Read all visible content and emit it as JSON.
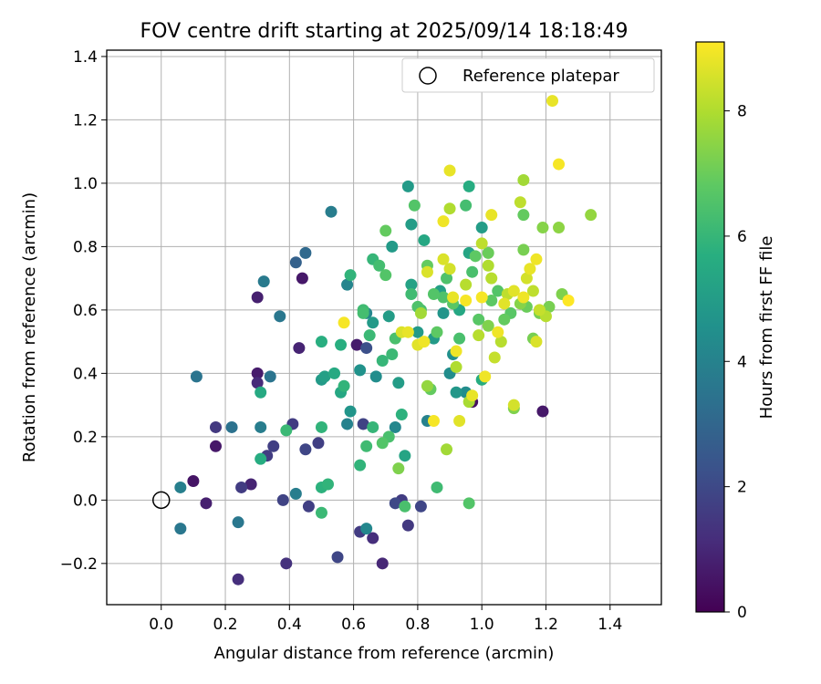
{
  "chart_data": {
    "type": "scatter",
    "title": "FOV centre drift starting at 2025/09/14 18:18:49",
    "xlabel": "Angular distance from reference (arcmin)",
    "ylabel": "Rotation from reference (arcmin)",
    "xlim": [
      -0.17,
      1.56
    ],
    "ylim": [
      -0.33,
      1.42
    ],
    "xticks": [
      "0.0",
      "0.2",
      "0.4",
      "0.6",
      "0.8",
      "1.0",
      "1.2",
      "1.4"
    ],
    "yticks": [
      "−0.2",
      "0.0",
      "0.2",
      "0.4",
      "0.6",
      "0.8",
      "1.0",
      "1.2",
      "1.4"
    ],
    "grid": true,
    "legend": {
      "label": "Reference platepar",
      "position": "top-right"
    },
    "reference_point": {
      "x": 0.0,
      "y": 0.0
    },
    "colorbar": {
      "label": "Hours from first FF file",
      "colormap": "viridis",
      "range": [
        0,
        9.1
      ],
      "ticks": [
        "0",
        "2",
        "4",
        "6",
        "8"
      ]
    },
    "points": [
      {
        "x": 0.1,
        "y": 0.06,
        "c": 0.5
      },
      {
        "x": 0.14,
        "y": -0.01,
        "c": 0.8
      },
      {
        "x": 0.17,
        "y": 0.17,
        "c": 0.6
      },
      {
        "x": 0.17,
        "y": 0.23,
        "c": 1.5
      },
      {
        "x": 0.25,
        "y": 0.04,
        "c": 1.6
      },
      {
        "x": 0.28,
        "y": 0.05,
        "c": 0.9
      },
      {
        "x": 0.24,
        "y": -0.25,
        "c": 1.2
      },
      {
        "x": 0.3,
        "y": 0.4,
        "c": 0.7
      },
      {
        "x": 0.3,
        "y": 0.64,
        "c": 0.8
      },
      {
        "x": 0.3,
        "y": 0.37,
        "c": 1.1
      },
      {
        "x": 0.33,
        "y": 0.14,
        "c": 1.6
      },
      {
        "x": 0.35,
        "y": 0.17,
        "c": 1.7
      },
      {
        "x": 0.38,
        "y": 0.0,
        "c": 1.8
      },
      {
        "x": 0.39,
        "y": -0.2,
        "c": 1.3
      },
      {
        "x": 0.41,
        "y": 0.24,
        "c": 1.6
      },
      {
        "x": 0.43,
        "y": 0.48,
        "c": 0.9
      },
      {
        "x": 0.44,
        "y": 0.7,
        "c": 0.6
      },
      {
        "x": 0.45,
        "y": 0.16,
        "c": 1.9
      },
      {
        "x": 0.46,
        "y": -0.02,
        "c": 1.7
      },
      {
        "x": 0.49,
        "y": 0.18,
        "c": 1.7
      },
      {
        "x": 0.55,
        "y": -0.18,
        "c": 1.9
      },
      {
        "x": 0.61,
        "y": 0.49,
        "c": 0.7
      },
      {
        "x": 0.62,
        "y": -0.1,
        "c": 1.6
      },
      {
        "x": 0.63,
        "y": 0.24,
        "c": 1.8
      },
      {
        "x": 0.64,
        "y": 0.48,
        "c": 2.2
      },
      {
        "x": 0.66,
        "y": -0.12,
        "c": 1.2
      },
      {
        "x": 0.69,
        "y": -0.2,
        "c": 1.0
      },
      {
        "x": 0.73,
        "y": -0.01,
        "c": 2.0
      },
      {
        "x": 0.75,
        "y": 0.0,
        "c": 1.6
      },
      {
        "x": 0.77,
        "y": -0.08,
        "c": 1.5
      },
      {
        "x": 0.81,
        "y": -0.02,
        "c": 1.9
      },
      {
        "x": 0.97,
        "y": 0.31,
        "c": 0.4
      },
      {
        "x": 1.19,
        "y": 0.28,
        "c": 0.6
      },
      {
        "x": 0.06,
        "y": -0.09,
        "c": 3.6
      },
      {
        "x": 0.06,
        "y": 0.04,
        "c": 3.9
      },
      {
        "x": 0.11,
        "y": 0.39,
        "c": 3.5
      },
      {
        "x": 0.22,
        "y": 0.23,
        "c": 3.4
      },
      {
        "x": 0.24,
        "y": -0.07,
        "c": 3.6
      },
      {
        "x": 0.31,
        "y": 0.23,
        "c": 3.8
      },
      {
        "x": 0.32,
        "y": 0.69,
        "c": 3.7
      },
      {
        "x": 0.34,
        "y": 0.39,
        "c": 3.5
      },
      {
        "x": 0.37,
        "y": 0.58,
        "c": 3.6
      },
      {
        "x": 0.42,
        "y": 0.02,
        "c": 3.8
      },
      {
        "x": 0.42,
        "y": 0.75,
        "c": 2.8
      },
      {
        "x": 0.45,
        "y": 0.78,
        "c": 3.1
      },
      {
        "x": 0.53,
        "y": 0.91,
        "c": 3.8
      },
      {
        "x": 0.58,
        "y": 0.68,
        "c": 4.1
      },
      {
        "x": 0.58,
        "y": 0.24,
        "c": 4.0
      },
      {
        "x": 0.59,
        "y": 0.28,
        "c": 4.7
      },
      {
        "x": 0.62,
        "y": 0.41,
        "c": 4.6
      },
      {
        "x": 0.64,
        "y": 0.59,
        "c": 4.2
      },
      {
        "x": 0.64,
        "y": -0.09,
        "c": 4.2
      },
      {
        "x": 0.66,
        "y": 0.56,
        "c": 4.9
      },
      {
        "x": 0.67,
        "y": 0.39,
        "c": 4.4
      },
      {
        "x": 0.71,
        "y": 0.58,
        "c": 5.0
      },
      {
        "x": 0.72,
        "y": 0.8,
        "c": 4.9
      },
      {
        "x": 0.73,
        "y": 0.23,
        "c": 4.2
      },
      {
        "x": 0.74,
        "y": 0.37,
        "c": 5.0
      },
      {
        "x": 0.76,
        "y": 0.14,
        "c": 5.3
      },
      {
        "x": 0.77,
        "y": 0.99,
        "c": 4.9
      },
      {
        "x": 0.78,
        "y": 0.87,
        "c": 5.0
      },
      {
        "x": 0.78,
        "y": 0.68,
        "c": 5.2
      },
      {
        "x": 0.8,
        "y": 0.53,
        "c": 4.9
      },
      {
        "x": 0.82,
        "y": 0.82,
        "c": 5.4
      },
      {
        "x": 0.83,
        "y": 0.25,
        "c": 4.0
      },
      {
        "x": 0.85,
        "y": 0.51,
        "c": 4.9
      },
      {
        "x": 0.87,
        "y": 0.66,
        "c": 5.1
      },
      {
        "x": 0.88,
        "y": 0.59,
        "c": 4.7
      },
      {
        "x": 0.9,
        "y": 0.4,
        "c": 4.4
      },
      {
        "x": 0.91,
        "y": 0.46,
        "c": 4.5
      },
      {
        "x": 0.92,
        "y": 0.34,
        "c": 4.8
      },
      {
        "x": 0.93,
        "y": 0.6,
        "c": 5.4
      },
      {
        "x": 0.95,
        "y": 0.34,
        "c": 4.4
      },
      {
        "x": 0.96,
        "y": 0.99,
        "c": 5.6
      },
      {
        "x": 0.96,
        "y": 0.78,
        "c": 5.3
      },
      {
        "x": 1.0,
        "y": 0.86,
        "c": 5.0
      },
      {
        "x": 1.0,
        "y": 0.38,
        "c": 5.6
      },
      {
        "x": 0.5,
        "y": 0.38,
        "c": 4.9
      },
      {
        "x": 0.51,
        "y": 0.39,
        "c": 5.1
      },
      {
        "x": 0.54,
        "y": 0.4,
        "c": 5.5
      },
      {
        "x": 0.56,
        "y": 0.34,
        "c": 5.4
      },
      {
        "x": 0.56,
        "y": 0.49,
        "c": 5.7
      },
      {
        "x": 0.57,
        "y": 0.36,
        "c": 5.9
      },
      {
        "x": 0.59,
        "y": 0.71,
        "c": 5.9
      },
      {
        "x": 0.5,
        "y": 0.5,
        "c": 5.7
      },
      {
        "x": 0.5,
        "y": 0.23,
        "c": 5.9
      },
      {
        "x": 0.5,
        "y": 0.04,
        "c": 5.8
      },
      {
        "x": 0.52,
        "y": 0.05,
        "c": 5.9
      },
      {
        "x": 0.5,
        "y": -0.04,
        "c": 6.1
      },
      {
        "x": 0.39,
        "y": 0.22,
        "c": 6.1
      },
      {
        "x": 0.31,
        "y": 0.13,
        "c": 5.6
      },
      {
        "x": 0.31,
        "y": 0.34,
        "c": 5.5
      },
      {
        "x": 0.62,
        "y": 0.11,
        "c": 5.9
      },
      {
        "x": 0.63,
        "y": 0.59,
        "c": 6.3
      },
      {
        "x": 0.63,
        "y": 0.6,
        "c": 6.2
      },
      {
        "x": 0.64,
        "y": 0.17,
        "c": 6.2
      },
      {
        "x": 0.65,
        "y": 0.52,
        "c": 6.1
      },
      {
        "x": 0.66,
        "y": 0.23,
        "c": 6.0
      },
      {
        "x": 0.66,
        "y": 0.76,
        "c": 6.0
      },
      {
        "x": 0.68,
        "y": 0.74,
        "c": 6.3
      },
      {
        "x": 0.69,
        "y": 0.44,
        "c": 6.0
      },
      {
        "x": 0.69,
        "y": 0.18,
        "c": 6.6
      },
      {
        "x": 0.7,
        "y": 0.85,
        "c": 6.9
      },
      {
        "x": 0.7,
        "y": 0.71,
        "c": 6.6
      },
      {
        "x": 0.71,
        "y": 0.2,
        "c": 6.4
      },
      {
        "x": 0.72,
        "y": 0.46,
        "c": 6.1
      },
      {
        "x": 0.73,
        "y": 0.51,
        "c": 6.4
      },
      {
        "x": 0.74,
        "y": 0.1,
        "c": 7.3
      },
      {
        "x": 0.75,
        "y": 0.27,
        "c": 5.8
      },
      {
        "x": 0.76,
        "y": -0.02,
        "c": 6.4
      },
      {
        "x": 0.78,
        "y": 0.65,
        "c": 6.2
      },
      {
        "x": 0.79,
        "y": 0.93,
        "c": 6.6
      },
      {
        "x": 0.8,
        "y": 0.61,
        "c": 6.5
      },
      {
        "x": 0.81,
        "y": 0.6,
        "c": 6.4
      },
      {
        "x": 0.83,
        "y": 0.74,
        "c": 6.9
      },
      {
        "x": 0.84,
        "y": 0.35,
        "c": 6.9
      },
      {
        "x": 0.85,
        "y": 0.65,
        "c": 6.6
      },
      {
        "x": 0.86,
        "y": 0.04,
        "c": 6.2
      },
      {
        "x": 0.86,
        "y": 0.53,
        "c": 6.8
      },
      {
        "x": 0.88,
        "y": 0.64,
        "c": 6.5
      },
      {
        "x": 0.89,
        "y": 0.7,
        "c": 6.5
      },
      {
        "x": 0.91,
        "y": 0.62,
        "c": 6.7
      },
      {
        "x": 0.93,
        "y": 0.51,
        "c": 6.4
      },
      {
        "x": 0.95,
        "y": 0.93,
        "c": 6.3
      },
      {
        "x": 0.96,
        "y": -0.01,
        "c": 6.6
      },
      {
        "x": 0.97,
        "y": 0.72,
        "c": 6.4
      },
      {
        "x": 0.98,
        "y": 0.77,
        "c": 6.8
      },
      {
        "x": 0.99,
        "y": 0.57,
        "c": 6.7
      },
      {
        "x": 1.02,
        "y": 0.78,
        "c": 7.0
      },
      {
        "x": 1.02,
        "y": 0.55,
        "c": 7.3
      },
      {
        "x": 1.03,
        "y": 0.63,
        "c": 6.8
      },
      {
        "x": 1.05,
        "y": 0.66,
        "c": 6.6
      },
      {
        "x": 1.07,
        "y": 0.57,
        "c": 6.9
      },
      {
        "x": 1.09,
        "y": 0.59,
        "c": 6.7
      },
      {
        "x": 1.1,
        "y": 0.29,
        "c": 7.3
      },
      {
        "x": 1.12,
        "y": 0.62,
        "c": 7.4
      },
      {
        "x": 1.13,
        "y": 0.9,
        "c": 6.9
      },
      {
        "x": 1.13,
        "y": 0.79,
        "c": 7.2
      },
      {
        "x": 1.14,
        "y": 0.61,
        "c": 7.0
      },
      {
        "x": 1.16,
        "y": 0.51,
        "c": 7.2
      },
      {
        "x": 1.18,
        "y": 0.59,
        "c": 7.2
      },
      {
        "x": 1.19,
        "y": 0.86,
        "c": 7.4
      },
      {
        "x": 1.21,
        "y": 0.61,
        "c": 7.2
      },
      {
        "x": 1.24,
        "y": 0.86,
        "c": 7.5
      },
      {
        "x": 1.25,
        "y": 0.65,
        "c": 7.3
      },
      {
        "x": 1.34,
        "y": 0.9,
        "c": 7.6
      },
      {
        "x": 1.13,
        "y": 1.01,
        "c": 7.8
      },
      {
        "x": 0.81,
        "y": 0.59,
        "c": 7.8
      },
      {
        "x": 0.83,
        "y": 0.36,
        "c": 7.6
      },
      {
        "x": 0.89,
        "y": 0.16,
        "c": 7.8
      },
      {
        "x": 0.9,
        "y": 0.92,
        "c": 8.0
      },
      {
        "x": 0.92,
        "y": 0.42,
        "c": 8.0
      },
      {
        "x": 0.95,
        "y": 0.68,
        "c": 8.1
      },
      {
        "x": 0.96,
        "y": 0.31,
        "c": 7.9
      },
      {
        "x": 0.99,
        "y": 0.52,
        "c": 8.1
      },
      {
        "x": 1.0,
        "y": 0.81,
        "c": 8.2
      },
      {
        "x": 1.02,
        "y": 0.74,
        "c": 8.0
      },
      {
        "x": 1.03,
        "y": 0.7,
        "c": 8.1
      },
      {
        "x": 1.04,
        "y": 0.45,
        "c": 8.3
      },
      {
        "x": 1.06,
        "y": 0.5,
        "c": 8.1
      },
      {
        "x": 1.08,
        "y": 0.65,
        "c": 8.2
      },
      {
        "x": 1.1,
        "y": 0.3,
        "c": 8.5
      },
      {
        "x": 1.12,
        "y": 0.94,
        "c": 8.2
      },
      {
        "x": 1.14,
        "y": 0.7,
        "c": 8.5
      },
      {
        "x": 1.16,
        "y": 0.66,
        "c": 8.2
      },
      {
        "x": 1.17,
        "y": 0.5,
        "c": 8.6
      },
      {
        "x": 1.18,
        "y": 0.6,
        "c": 8.3
      },
      {
        "x": 1.2,
        "y": 0.58,
        "c": 8.1
      },
      {
        "x": 0.77,
        "y": 0.53,
        "c": 8.8
      },
      {
        "x": 0.8,
        "y": 0.49,
        "c": 8.7
      },
      {
        "x": 0.82,
        "y": 0.5,
        "c": 8.9
      },
      {
        "x": 0.83,
        "y": 0.72,
        "c": 8.6
      },
      {
        "x": 0.85,
        "y": 0.25,
        "c": 9.0
      },
      {
        "x": 0.88,
        "y": 0.88,
        "c": 8.9
      },
      {
        "x": 0.9,
        "y": 1.04,
        "c": 8.8
      },
      {
        "x": 0.91,
        "y": 0.64,
        "c": 8.8
      },
      {
        "x": 0.92,
        "y": 0.47,
        "c": 8.9
      },
      {
        "x": 0.93,
        "y": 0.25,
        "c": 8.7
      },
      {
        "x": 0.95,
        "y": 0.63,
        "c": 9.0
      },
      {
        "x": 0.97,
        "y": 0.33,
        "c": 8.8
      },
      {
        "x": 1.0,
        "y": 0.64,
        "c": 9.0
      },
      {
        "x": 1.01,
        "y": 0.39,
        "c": 8.9
      },
      {
        "x": 1.03,
        "y": 0.9,
        "c": 8.8
      },
      {
        "x": 1.05,
        "y": 0.53,
        "c": 8.9
      },
      {
        "x": 1.07,
        "y": 0.62,
        "c": 8.7
      },
      {
        "x": 1.1,
        "y": 0.66,
        "c": 8.7
      },
      {
        "x": 1.13,
        "y": 0.64,
        "c": 8.9
      },
      {
        "x": 1.15,
        "y": 0.73,
        "c": 8.8
      },
      {
        "x": 1.17,
        "y": 0.76,
        "c": 8.9
      },
      {
        "x": 1.22,
        "y": 1.26,
        "c": 8.8
      },
      {
        "x": 1.24,
        "y": 1.06,
        "c": 9.0
      },
      {
        "x": 1.27,
        "y": 0.63,
        "c": 9.1
      },
      {
        "x": 0.57,
        "y": 0.56,
        "c": 9.0
      },
      {
        "x": 0.75,
        "y": 0.53,
        "c": 8.6
      },
      {
        "x": 0.88,
        "y": 0.76,
        "c": 8.6
      },
      {
        "x": 0.9,
        "y": 0.73,
        "c": 8.5
      }
    ]
  }
}
